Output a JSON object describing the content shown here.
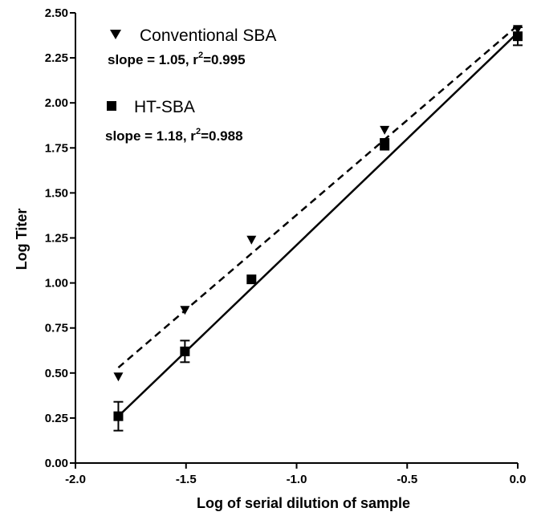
{
  "chart_data": {
    "type": "scatter",
    "xlabel": "Log of serial dilution of sample",
    "ylabel": "Log Titer",
    "xlim": [
      -2.0,
      0.0
    ],
    "ylim": [
      0.0,
      2.5
    ],
    "x_ticks": [
      "-2.0",
      "-1.5",
      "-1.0",
      "-0.5",
      "0.0"
    ],
    "y_ticks": [
      "0.00",
      "0.25",
      "0.50",
      "0.75",
      "1.00",
      "1.25",
      "1.50",
      "1.75",
      "2.00",
      "2.25",
      "2.50"
    ],
    "grid": false,
    "legend_position": "top-left",
    "series": [
      {
        "name": "Conventional SBA",
        "marker": "triangle-down",
        "line_style": "dashed",
        "color": "#000000",
        "x": [
          -1.806,
          -1.505,
          -1.204,
          -0.602,
          0.0
        ],
        "y": [
          0.48,
          0.85,
          1.24,
          1.85,
          2.41
        ],
        "fit_line": {
          "x": [
            -1.806,
            0.0
          ],
          "y": [
            0.53,
            2.43
          ]
        },
        "slope_label": "slope = 1.05, r",
        "r2_exponent": "2",
        "r2_value": "=0.995"
      },
      {
        "name": "HT-SBA",
        "marker": "square",
        "line_style": "solid",
        "color": "#000000",
        "x": [
          -1.806,
          -1.505,
          -1.204,
          -0.602,
          0.0
        ],
        "y": [
          0.26,
          0.62,
          1.02,
          1.77,
          2.37
        ],
        "error": [
          0.08,
          0.06,
          0.0,
          0.03,
          0.05
        ],
        "fit_line": {
          "x": [
            -1.806,
            0.0
          ],
          "y": [
            0.26,
            2.39
          ]
        },
        "slope_label": "slope = 1.18, r",
        "r2_exponent": "2",
        "r2_value": "=0.988"
      }
    ]
  }
}
